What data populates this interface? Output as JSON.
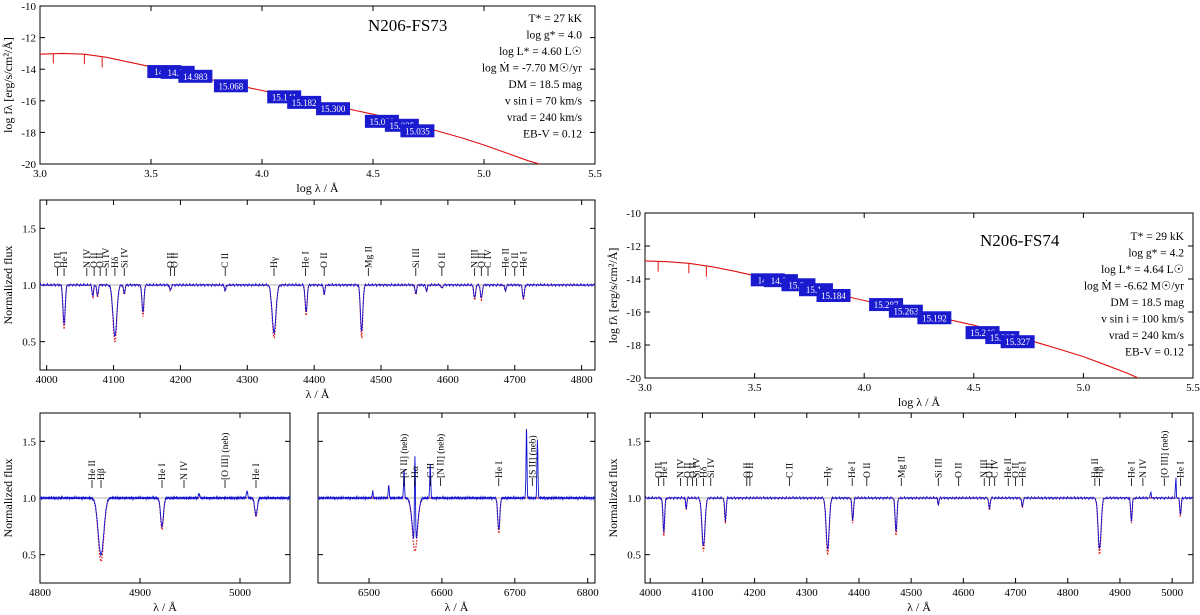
{
  "figure": {
    "fs73": {
      "star_name": "N206-FS73",
      "params": [
        "T* = 27 kK",
        "log g* = 4.0",
        "log L* = 4.60 L☉",
        "log Ṁ = -7.70 M☉/yr",
        "DM = 18.5 mag",
        "v sin i = 70 km/s",
        "vrad = 240 km/s",
        "EB-V = 0.12"
      ],
      "photometry_labels": [
        "14.9..",
        "14.9..",
        "14.983",
        "15.068",
        "15.141",
        "15.182",
        "15.300",
        "15.055",
        "15.035",
        "15.035"
      ]
    },
    "fs74": {
      "star_name": "N206-FS74",
      "params": [
        "T* = 29 kK",
        "log g* = 4.2",
        "log L* = 4.64 L☉",
        "log Ṁ = -6.62 M☉/yr",
        "DM = 18.5 mag",
        "v sin i = 100 km/s",
        "vrad = 240 km/s",
        "EB-V = 0.12"
      ],
      "photometry_labels": [
        "14.9..",
        "14.9..",
        "15.0..",
        "15.1..",
        "15.184",
        "15.287",
        "15.263",
        "15.192",
        "15.246",
        "15.327",
        "15.327"
      ]
    },
    "line_ids": {
      "blue_fs73": [
        "O II",
        "He I",
        "N IV",
        "O II",
        "O II",
        "Si IV",
        "Hδ",
        "Si IV",
        "O II",
        "O II",
        "C II",
        "Hγ",
        "He I",
        "O II",
        "Mg II",
        "Si III",
        "O II",
        "N III",
        "O II",
        "C IV",
        "He II",
        "O II",
        "He I"
      ],
      "hb_window": [
        "He II",
        "Hβ",
        "He I",
        "N IV",
        "[O III] (neb)",
        "He I"
      ],
      "ha_window": [
        "[N II] (neb)",
        "Hα",
        "C II",
        "[N II] (neb)",
        "He I",
        "[S II] (neb)"
      ],
      "fs74_spec": [
        "O II",
        "He I",
        "N IV",
        "O II",
        "O II",
        "Si IV",
        "Hδ",
        "Si IV",
        "O II",
        "O II",
        "C II",
        "Hγ",
        "He I",
        "O II",
        "Mg II",
        "Si III",
        "O II",
        "N III",
        "O II",
        "C IV",
        "He II",
        "O II",
        "He I",
        "He II",
        "Hβ",
        "He I",
        "N IV",
        "[O III] (neb)",
        "He I"
      ]
    }
  },
  "chart_data": [
    {
      "id": "sed_fs73",
      "type": "line",
      "xlabel": "log λ / Å",
      "ylabel": "log fλ [erg/s/cm²/Å]",
      "xlim": [
        3.0,
        5.5
      ],
      "ylim": [
        -20,
        -10
      ],
      "xticks": [
        3.0,
        3.5,
        4.0,
        4.5,
        5.0,
        5.5
      ],
      "yticks": [
        -10,
        -12,
        -14,
        -16,
        -18,
        -20
      ],
      "model_sed": {
        "x": [
          3.0,
          3.1,
          3.2,
          3.3,
          3.4,
          3.5,
          3.6,
          3.7,
          3.8,
          3.9,
          4.0,
          4.1,
          4.2,
          4.3,
          4.4,
          4.5,
          4.6,
          4.7,
          4.8,
          4.9,
          5.0,
          5.1,
          5.2,
          5.25
        ],
        "y": [
          -13.05,
          -13.0,
          -13.05,
          -13.25,
          -13.55,
          -13.85,
          -14.15,
          -14.45,
          -14.75,
          -15.05,
          -15.35,
          -15.65,
          -15.95,
          -16.25,
          -16.55,
          -16.85,
          -17.2,
          -17.55,
          -17.95,
          -18.35,
          -18.8,
          -19.3,
          -19.8,
          -20.0
        ]
      },
      "photometry": {
        "x": [
          3.56,
          3.62,
          3.7,
          3.86,
          4.1,
          4.19,
          4.32,
          4.54,
          4.63,
          4.7
        ],
        "y": [
          -14.15,
          -14.2,
          -14.45,
          -15.05,
          -15.75,
          -16.1,
          -16.5,
          -17.3,
          -17.55,
          -17.9
        ]
      }
    },
    {
      "id": "blue_fs73",
      "type": "line",
      "xlabel": "λ / Å",
      "ylabel": "Normalized flux",
      "xlim": [
        3990,
        4820
      ],
      "ylim": [
        0.25,
        1.75
      ],
      "xticks": [
        4000,
        4100,
        4200,
        4300,
        4400,
        4500,
        4600,
        4700,
        4800
      ],
      "yticks": [
        0.5,
        1.0,
        1.5
      ],
      "lines": [
        {
          "w": 4026,
          "d": 0.35,
          "w2": 2.2
        },
        {
          "w": 4069,
          "d": 0.1,
          "w2": 1.5
        },
        {
          "w": 4076,
          "d": 0.1,
          "w2": 1.5
        },
        {
          "w": 4102,
          "d": 0.45,
          "w2": 4
        },
        {
          "w": 4116,
          "d": 0.08,
          "w2": 1.5
        },
        {
          "w": 4144,
          "d": 0.25,
          "w2": 2
        },
        {
          "w": 4185,
          "d": 0.05,
          "w2": 1.5
        },
        {
          "w": 4267,
          "d": 0.05,
          "w2": 1.5
        },
        {
          "w": 4340,
          "d": 0.42,
          "w2": 4
        },
        {
          "w": 4388,
          "d": 0.25,
          "w2": 2
        },
        {
          "w": 4415,
          "d": 0.08,
          "w2": 1.5
        },
        {
          "w": 4471,
          "d": 0.42,
          "w2": 2.4
        },
        {
          "w": 4552,
          "d": 0.08,
          "w2": 1.5
        },
        {
          "w": 4568,
          "d": 0.05,
          "w2": 1.5
        },
        {
          "w": 4591,
          "d": 0.03,
          "w2": 1.5
        },
        {
          "w": 4640,
          "d": 0.12,
          "w2": 1.8
        },
        {
          "w": 4650,
          "d": 0.12,
          "w2": 1.8
        },
        {
          "w": 4686,
          "d": 0.05,
          "w2": 1.5
        },
        {
          "w": 4713,
          "d": 0.12,
          "w2": 1.8
        }
      ]
    },
    {
      "id": "hb_fs73",
      "type": "line",
      "xlabel": "λ / Å",
      "ylabel": "Normalized flux",
      "xlim": [
        4800,
        5050
      ],
      "ylim": [
        0.25,
        1.75
      ],
      "xticks": [
        4800,
        4900,
        5000
      ],
      "yticks": [
        0.5,
        1.0,
        1.5
      ],
      "lines": [
        {
          "w": 4861,
          "d": 0.5,
          "w2": 4
        },
        {
          "w": 4922,
          "d": 0.25,
          "w2": 2
        },
        {
          "w": 5016,
          "d": 0.15,
          "w2": 1.8
        }
      ],
      "emission": [
        {
          "w": 4959,
          "h": 0.04
        },
        {
          "w": 5007,
          "h": 0.06
        }
      ]
    },
    {
      "id": "ha_fs73",
      "type": "line",
      "xlabel": "λ / Å",
      "ylabel": "",
      "xlim": [
        6430,
        6810
      ],
      "ylim": [
        0.25,
        1.75
      ],
      "xticks": [
        6500,
        6600,
        6700,
        6800
      ],
      "yticks": [
        0.5,
        1.0,
        1.5
      ],
      "lines": [
        {
          "w": 6563,
          "d": 0.42,
          "w2": 5
        },
        {
          "w": 6678,
          "d": 0.28,
          "w2": 2
        }
      ],
      "emission": [
        {
          "w": 6548,
          "h": 0.25
        },
        {
          "w": 6563,
          "h": 0.8
        },
        {
          "w": 6584,
          "h": 0.3
        },
        {
          "w": 6716,
          "h": 0.62
        },
        {
          "w": 6731,
          "h": 0.52
        },
        {
          "w": 6527,
          "h": 0.12
        },
        {
          "w": 6505,
          "h": 0.06
        }
      ]
    },
    {
      "id": "sed_fs74",
      "type": "line",
      "xlabel": "log λ / Å",
      "ylabel": "log fλ [erg/s/cm²/Å]",
      "xlim": [
        3.0,
        5.5
      ],
      "ylim": [
        -20,
        -10
      ],
      "xticks": [
        3.0,
        3.5,
        4.0,
        4.5,
        5.0,
        5.5
      ],
      "yticks": [
        -10,
        -12,
        -14,
        -16,
        -18,
        -20
      ],
      "model_sed": {
        "x": [
          3.0,
          3.1,
          3.2,
          3.3,
          3.4,
          3.5,
          3.6,
          3.7,
          3.8,
          3.9,
          4.0,
          4.1,
          4.2,
          4.3,
          4.4,
          4.5,
          4.6,
          4.7,
          4.8,
          4.9,
          5.0,
          5.1,
          5.2,
          5.25
        ],
        "y": [
          -12.9,
          -12.95,
          -13.05,
          -13.25,
          -13.5,
          -13.8,
          -14.1,
          -14.4,
          -14.7,
          -15.0,
          -15.3,
          -15.6,
          -15.9,
          -16.2,
          -16.5,
          -16.8,
          -17.15,
          -17.5,
          -17.9,
          -18.3,
          -18.7,
          -19.2,
          -19.7,
          -20.0
        ]
      },
      "photometry": {
        "x": [
          3.56,
          3.62,
          3.7,
          3.78,
          3.86,
          4.1,
          4.19,
          4.32,
          4.54,
          4.63,
          4.7
        ],
        "y": [
          -14.05,
          -14.1,
          -14.35,
          -14.65,
          -15.0,
          -15.55,
          -15.95,
          -16.35,
          -17.25,
          -17.55,
          -17.8
        ]
      }
    },
    {
      "id": "spec_fs74",
      "type": "line",
      "xlabel": "λ / Å",
      "ylabel": "Normalized flux",
      "xlim": [
        3990,
        5040
      ],
      "ylim": [
        0.25,
        1.75
      ],
      "xticks": [
        4000,
        4100,
        4200,
        4300,
        4400,
        4500,
        4600,
        4700,
        4800,
        4900,
        5000
      ],
      "yticks": [
        0.5,
        1.0,
        1.5
      ],
      "lines": [
        {
          "w": 4026,
          "d": 0.3,
          "w2": 2.2
        },
        {
          "w": 4069,
          "d": 0.1,
          "w2": 1.5
        },
        {
          "w": 4102,
          "d": 0.42,
          "w2": 4
        },
        {
          "w": 4144,
          "d": 0.2,
          "w2": 2
        },
        {
          "w": 4340,
          "d": 0.45,
          "w2": 4
        },
        {
          "w": 4388,
          "d": 0.2,
          "w2": 2
        },
        {
          "w": 4471,
          "d": 0.3,
          "w2": 2.4
        },
        {
          "w": 4552,
          "d": 0.06,
          "w2": 1.5
        },
        {
          "w": 4650,
          "d": 0.1,
          "w2": 1.8
        },
        {
          "w": 4713,
          "d": 0.08,
          "w2": 1.8
        },
        {
          "w": 4861,
          "d": 0.45,
          "w2": 4
        },
        {
          "w": 4922,
          "d": 0.2,
          "w2": 2
        },
        {
          "w": 5016,
          "d": 0.15,
          "w2": 1.8
        }
      ],
      "emission": [
        {
          "w": 5007,
          "h": 0.2
        },
        {
          "w": 4959,
          "h": 0.08
        }
      ]
    }
  ]
}
